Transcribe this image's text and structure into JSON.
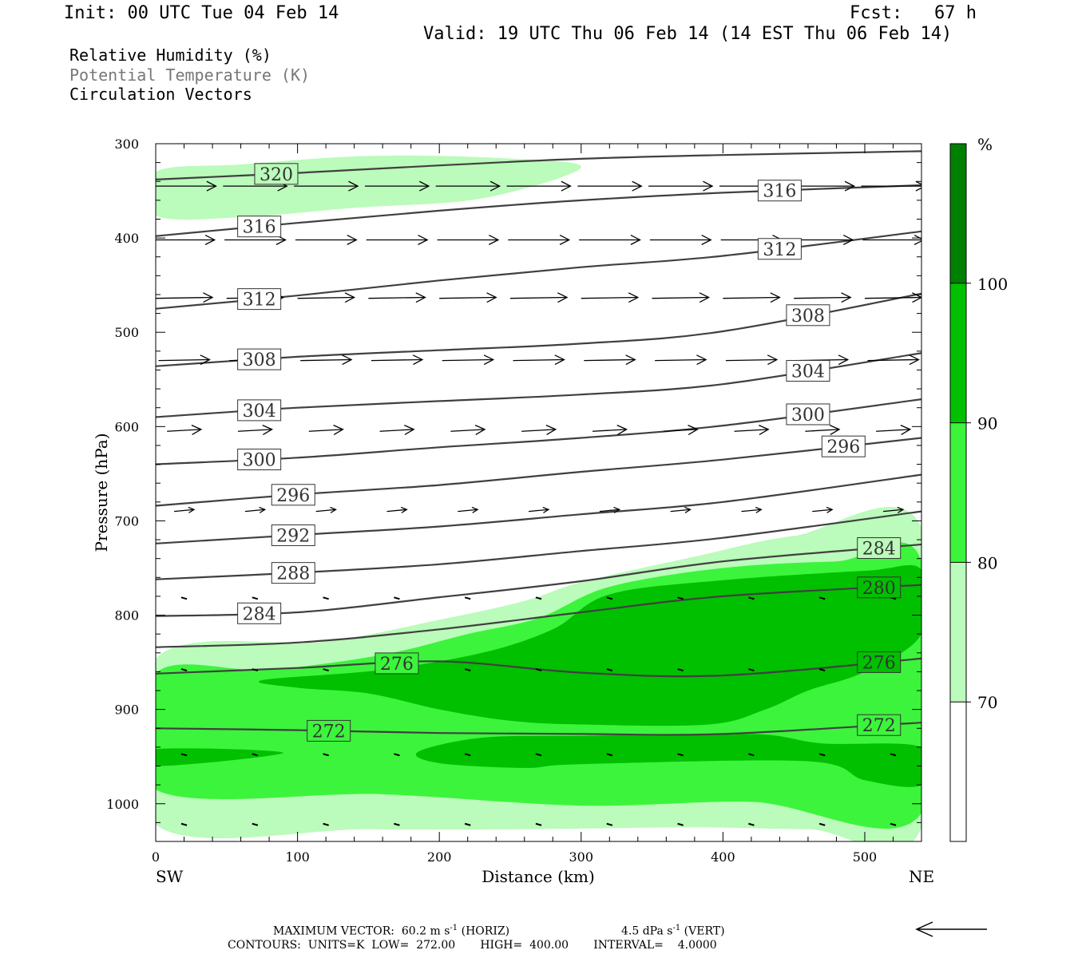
{
  "header": {
    "init": "Init: 00 UTC Tue 04 Feb 14",
    "fcst": "Fcst:   67 h",
    "valid": "Valid: 19 UTC Thu 06 Feb 14 (14 EST Thu 06 Feb 14)"
  },
  "fields": [
    "Relative Humidity (%)",
    "Potential Temperature (K)",
    "Circulation Vectors"
  ],
  "colors": {
    "rh70": "#bbfbbb",
    "rh80": "#3cf43c",
    "rh90": "#00c000",
    "rh100": "#008000",
    "theta_line": "#404040",
    "legend_gray": "#777777"
  },
  "footer": {
    "max_vector": "MAXIMUM VECTOR:  60.2 m s",
    "horiz": "(HORIZ)",
    "vert_val": "4.5 dPa s",
    "vert": "(VERT)",
    "exp": "-1",
    "contours": "CONTOURS:  UNITS=K  LOW=  272.00       HIGH=  400.00       INTERVAL=    4.0000"
  },
  "chart_data": {
    "type": "cross-section",
    "xlabel": "Distance (km)",
    "ylabel": "Pressure (hPa)",
    "xlim": [
      0,
      540
    ],
    "ylim": [
      300,
      1040
    ],
    "x_ticks": [
      0,
      100,
      200,
      300,
      400,
      500
    ],
    "y_ticks": [
      300,
      400,
      500,
      600,
      700,
      800,
      900,
      1000
    ],
    "x_end_labels": {
      "left": "SW",
      "right": "NE"
    },
    "colorbar": {
      "unit": "%",
      "levels": [
        70,
        80,
        90,
        100
      ]
    },
    "theta_contours": [
      {
        "label": "320",
        "pts": [
          [
            0,
            338
          ],
          [
            100,
            331
          ],
          [
            200,
            323
          ],
          [
            300,
            316
          ],
          [
            400,
            312
          ],
          [
            540,
            308
          ]
        ]
      },
      {
        "label": "316",
        "pts": [
          [
            0,
            398
          ],
          [
            100,
            384
          ],
          [
            200,
            371
          ],
          [
            300,
            360
          ],
          [
            400,
            352
          ],
          [
            540,
            344
          ]
        ]
      },
      {
        "label": "312",
        "pts": [
          [
            0,
            475
          ],
          [
            100,
            461
          ],
          [
            200,
            445
          ],
          [
            300,
            431
          ],
          [
            400,
            419
          ],
          [
            540,
            393
          ]
        ]
      },
      {
        "label": "308",
        "pts": [
          [
            0,
            536
          ],
          [
            100,
            526
          ],
          [
            200,
            519
          ],
          [
            300,
            512
          ],
          [
            400,
            499
          ],
          [
            540,
            459
          ]
        ]
      },
      {
        "label": "304",
        "pts": [
          [
            0,
            590
          ],
          [
            100,
            580
          ],
          [
            200,
            573
          ],
          [
            300,
            566
          ],
          [
            400,
            555
          ],
          [
            540,
            522
          ]
        ]
      },
      {
        "label": "300",
        "pts": [
          [
            0,
            640
          ],
          [
            100,
            633
          ],
          [
            200,
            622
          ],
          [
            300,
            612
          ],
          [
            400,
            599
          ],
          [
            540,
            571
          ]
        ]
      },
      {
        "label": "296",
        "pts": [
          [
            0,
            684
          ],
          [
            100,
            672
          ],
          [
            200,
            662
          ],
          [
            300,
            648
          ],
          [
            400,
            635
          ],
          [
            540,
            612
          ]
        ]
      },
      {
        "label": "292",
        "pts": [
          [
            0,
            724
          ],
          [
            100,
            715
          ],
          [
            200,
            706
          ],
          [
            300,
            693
          ],
          [
            400,
            680
          ],
          [
            540,
            651
          ]
        ]
      },
      {
        "label": "288",
        "pts": [
          [
            0,
            762
          ],
          [
            100,
            755
          ],
          [
            200,
            746
          ],
          [
            300,
            732
          ],
          [
            400,
            718
          ],
          [
            540,
            690
          ]
        ]
      },
      {
        "label": "284",
        "pts": [
          [
            0,
            801
          ],
          [
            100,
            797
          ],
          [
            200,
            781
          ],
          [
            300,
            764
          ],
          [
            400,
            743
          ],
          [
            540,
            725
          ]
        ]
      },
      {
        "label": "280",
        "pts": [
          [
            0,
            834
          ],
          [
            100,
            829
          ],
          [
            200,
            815
          ],
          [
            300,
            797
          ],
          [
            400,
            780
          ],
          [
            540,
            768
          ]
        ]
      },
      {
        "label": "276",
        "pts": [
          [
            0,
            862
          ],
          [
            100,
            856
          ],
          [
            200,
            849
          ],
          [
            300,
            861
          ],
          [
            400,
            864
          ],
          [
            540,
            846
          ]
        ]
      },
      {
        "label": "272",
        "pts": [
          [
            0,
            920
          ],
          [
            100,
            922
          ],
          [
            200,
            925
          ],
          [
            300,
            926
          ],
          [
            400,
            926
          ],
          [
            540,
            914
          ]
        ]
      }
    ],
    "rh_regions": [
      {
        "level": 70,
        "pts": [
          [
            0,
            330
          ],
          [
            60,
            322
          ],
          [
            150,
            313
          ],
          [
            240,
            315
          ],
          [
            300,
            325
          ],
          [
            230,
            358
          ],
          [
            140,
            368
          ],
          [
            60,
            378
          ],
          [
            0,
            376
          ]
        ]
      },
      {
        "level": 70,
        "pts": [
          [
            0,
            846
          ],
          [
            120,
            828
          ],
          [
            200,
            805
          ],
          [
            260,
            785
          ],
          [
            300,
            765
          ],
          [
            380,
            738
          ],
          [
            450,
            716
          ],
          [
            540,
            707
          ],
          [
            540,
            1025
          ],
          [
            460,
            1027
          ],
          [
            380,
            1025
          ],
          [
            260,
            1027
          ],
          [
            150,
            1027
          ],
          [
            0,
            1022
          ]
        ]
      },
      {
        "level": 80,
        "pts": [
          [
            0,
            862
          ],
          [
            80,
            858
          ],
          [
            160,
            842
          ],
          [
            220,
            820
          ],
          [
            270,
            803
          ],
          [
            320,
            770
          ],
          [
            400,
            750
          ],
          [
            480,
            743
          ],
          [
            540,
            743
          ],
          [
            540,
            1010
          ],
          [
            420,
            998
          ],
          [
            300,
            1002
          ],
          [
            160,
            990
          ],
          [
            0,
            985
          ]
        ]
      },
      {
        "level": 90,
        "pts": [
          [
            75,
            869
          ],
          [
            160,
            858
          ],
          [
            230,
            840
          ],
          [
            280,
            815
          ],
          [
            320,
            778
          ],
          [
            400,
            763
          ],
          [
            500,
            753
          ],
          [
            540,
            752
          ],
          [
            540,
            820
          ],
          [
            500,
            860
          ],
          [
            460,
            880
          ],
          [
            430,
            900
          ],
          [
            390,
            916
          ],
          [
            300,
            916
          ],
          [
            250,
            912
          ],
          [
            200,
            900
          ],
          [
            150,
            883
          ],
          [
            100,
            877
          ]
        ]
      },
      {
        "level": 90,
        "pts": [
          [
            0,
            942
          ],
          [
            90,
            946
          ],
          [
            0,
            960
          ]
        ]
      },
      {
        "level": 90,
        "pts": [
          [
            185,
            945
          ],
          [
            230,
            930
          ],
          [
            300,
            928
          ],
          [
            420,
            926
          ],
          [
            470,
            936
          ],
          [
            540,
            940
          ],
          [
            540,
            980
          ],
          [
            500,
            975
          ],
          [
            460,
            955
          ],
          [
            300,
            958
          ],
          [
            260,
            962
          ],
          [
            200,
            957
          ]
        ]
      }
    ],
    "vectors": {
      "levels": [
        345,
        402,
        464,
        530,
        605,
        690
      ],
      "x_positions": [
        20,
        70,
        120,
        170,
        220,
        270,
        320,
        370,
        420,
        470,
        520
      ],
      "lengths_km": [
        45,
        43,
        40,
        36,
        24,
        14
      ],
      "tilt_hpa": [
        0,
        0,
        -1,
        -1,
        -2,
        -2
      ]
    }
  }
}
